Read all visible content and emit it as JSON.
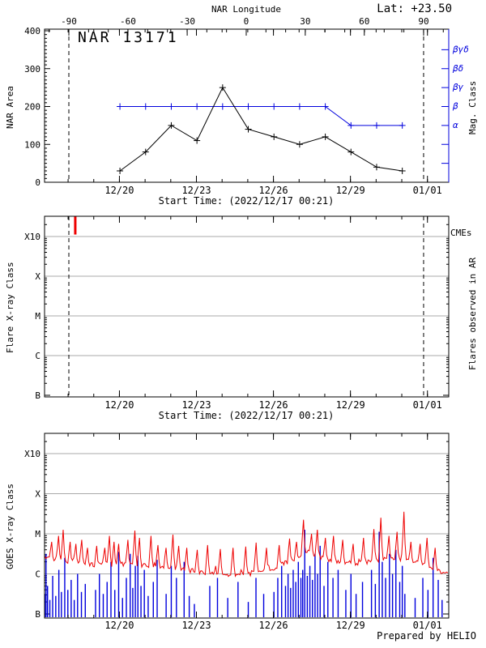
{
  "header": {
    "lat_label": "Lat: +23.50",
    "region_title": "NAR 13171"
  },
  "footer": {
    "prepared_by": "Prepared by HELIO"
  },
  "colors": {
    "blue": "#0000dd",
    "red": "#ee0000",
    "grid_gray": "#aaaaaa",
    "black": "#000000",
    "background": "#ffffff"
  },
  "time_axis": {
    "start_time_label": "Start Time: (2022/12/17 00:21)",
    "tick_labels": [
      "12/20",
      "12/23",
      "12/26",
      "12/29",
      "01/01"
    ],
    "tick_days": [
      2.98,
      5.98,
      8.98,
      11.98,
      14.98
    ],
    "minor_tick_start_day": 0.98,
    "minor_tick_step_days": 1,
    "range_days": [
      0,
      15.81
    ],
    "dashed_line_days": [
      1.01,
      14.83
    ]
  },
  "chart_data": [
    {
      "type": "line",
      "panel": "nar-area",
      "title": "NAR 13171",
      "ylabel": "NAR Area",
      "ylim": [
        0,
        400
      ],
      "yticks": [
        0,
        100,
        200,
        300,
        400
      ],
      "y_minor_step": 10,
      "top_axis": {
        "label": "NAR Longitude",
        "tick_values": [
          -90,
          -60,
          -30,
          0,
          30,
          60,
          90
        ],
        "tick_days": [
          1.01,
          3.31,
          5.62,
          7.92,
          10.22,
          12.52,
          14.83
        ],
        "minor_start_day": 0.243,
        "minor_step_days": 0.7677
      },
      "right_axis": {
        "label": "Mag. Class",
        "class_labels": [
          "βγδ",
          "βδ",
          "βγ",
          "β",
          "α"
        ],
        "class_area_levels": [
          350,
          300,
          250,
          200,
          150
        ],
        "unlabeled_tick_levels": [
          100,
          50
        ]
      },
      "series": [
        {
          "name": "NAR Area",
          "color_key": "black",
          "marker": "plus",
          "x_days": [
            3,
            4,
            5,
            6,
            7,
            8,
            9,
            10,
            11,
            12,
            13,
            14
          ],
          "values": [
            30,
            80,
            150,
            110,
            250,
            140,
            120,
            100,
            120,
            80,
            40,
            30
          ]
        },
        {
          "name": "Mag. Class",
          "color_key": "blue",
          "marker": "plus",
          "x_days": [
            3,
            4,
            5,
            6,
            7,
            8,
            9,
            10,
            11,
            12,
            13,
            14
          ],
          "values": [
            200,
            200,
            200,
            200,
            200,
            200,
            200,
            200,
            200,
            150,
            150,
            150
          ],
          "class_values": [
            "β",
            "β",
            "β",
            "β",
            "β",
            "β",
            "β",
            "β",
            "β",
            "α",
            "α",
            "α"
          ]
        }
      ]
    },
    {
      "type": "events",
      "panel": "flare-xray",
      "ylabel": "Flare X-ray Class",
      "ytick_labels": [
        "B",
        "C",
        "M",
        "X",
        "X10"
      ],
      "ytick_levels": [
        0,
        1,
        2,
        3,
        4
      ],
      "grid_levels": [
        1,
        2,
        3,
        4
      ],
      "ytop_level": 4.5,
      "right_labels": {
        "cme": "CMEs",
        "flares": "Flares observed in AR"
      },
      "cmes": [
        {
          "day": 1.26,
          "level_from": 4.05,
          "level_to": 4.5
        }
      ],
      "flares": [],
      "xlabel": "Start Time: (2022/12/17 00:21)"
    },
    {
      "type": "line+bars",
      "panel": "goes-xray",
      "ylabel": "GOES X-ray Class",
      "ytick_labels": [
        "B",
        "C",
        "M",
        "X",
        "X10"
      ],
      "ytick_levels": [
        0,
        1,
        2,
        3,
        4
      ],
      "grid_levels": [
        1,
        2,
        3,
        4
      ],
      "ytop_level": 4.5,
      "flux_units": "decades above B (B=0, C=1, M=2, X=3, X10=4)",
      "flux_baseline": [
        [
          0,
          1.45
        ],
        [
          0.4,
          1.38
        ],
        [
          0.8,
          1.32
        ],
        [
          1.2,
          1.3
        ],
        [
          1.6,
          1.27
        ],
        [
          2,
          1.22
        ],
        [
          2.4,
          1.25
        ],
        [
          2.8,
          1.22
        ],
        [
          3.2,
          1.24
        ],
        [
          3.6,
          1.22
        ],
        [
          4,
          1.2
        ],
        [
          4.4,
          1.18
        ],
        [
          4.8,
          1.2
        ],
        [
          5.2,
          1.15
        ],
        [
          5.6,
          1.1
        ],
        [
          6,
          1.06
        ],
        [
          6.4,
          1.03
        ],
        [
          6.8,
          1.01
        ],
        [
          7.2,
          0.99
        ],
        [
          7.6,
          0.98
        ],
        [
          8,
          0.99
        ],
        [
          8.4,
          1.04
        ],
        [
          8.8,
          1.1
        ],
        [
          9.2,
          1.2
        ],
        [
          9.6,
          1.32
        ],
        [
          10,
          1.45
        ],
        [
          10.3,
          1.55
        ],
        [
          10.6,
          1.47
        ],
        [
          11,
          1.38
        ],
        [
          11.4,
          1.32
        ],
        [
          11.8,
          1.28
        ],
        [
          12.2,
          1.26
        ],
        [
          12.6,
          1.3
        ],
        [
          13,
          1.34
        ],
        [
          13.4,
          1.38
        ],
        [
          13.8,
          1.36
        ],
        [
          14.2,
          1.32
        ],
        [
          14.6,
          1.28
        ],
        [
          15,
          1.18
        ],
        [
          15.4,
          1.08
        ],
        [
          15.8,
          1.02
        ]
      ],
      "flux_spikes": [
        [
          0.05,
          2.0
        ],
        [
          0.35,
          1.8
        ],
        [
          0.6,
          1.95
        ],
        [
          0.8,
          2.1
        ],
        [
          1.05,
          1.8
        ],
        [
          1.3,
          1.75
        ],
        [
          1.5,
          1.85
        ],
        [
          1.75,
          1.65
        ],
        [
          2.1,
          1.7
        ],
        [
          2.4,
          1.65
        ],
        [
          2.6,
          1.95
        ],
        [
          2.75,
          1.8
        ],
        [
          2.95,
          1.75
        ],
        [
          3.3,
          1.85
        ],
        [
          3.6,
          2.08
        ],
        [
          3.78,
          1.9
        ],
        [
          4.2,
          1.95
        ],
        [
          4.5,
          1.72
        ],
        [
          4.8,
          1.65
        ],
        [
          5.05,
          1.98
        ],
        [
          5.3,
          1.7
        ],
        [
          5.6,
          1.65
        ],
        [
          6,
          1.6
        ],
        [
          6.4,
          1.72
        ],
        [
          6.9,
          1.62
        ],
        [
          7.4,
          1.65
        ],
        [
          7.9,
          1.68
        ],
        [
          8.3,
          1.78
        ],
        [
          8.7,
          1.65
        ],
        [
          9.2,
          1.72
        ],
        [
          9.6,
          1.88
        ],
        [
          9.9,
          1.8
        ],
        [
          10.15,
          2.35
        ],
        [
          10.45,
          2.0
        ],
        [
          10.7,
          2.1
        ],
        [
          11,
          1.9
        ],
        [
          11.3,
          1.95
        ],
        [
          11.7,
          1.85
        ],
        [
          12.1,
          1.75
        ],
        [
          12.5,
          1.9
        ],
        [
          12.9,
          2.12
        ],
        [
          13.15,
          2.4
        ],
        [
          13.5,
          1.95
        ],
        [
          13.8,
          2.05
        ],
        [
          14.05,
          2.55
        ],
        [
          14.35,
          1.8
        ],
        [
          14.7,
          1.75
        ],
        [
          14.95,
          1.9
        ],
        [
          15.3,
          1.65
        ]
      ],
      "flare_bars": [
        [
          0.07,
          0.5
        ],
        [
          0.12,
          1.5
        ],
        [
          0.18,
          0.7
        ],
        [
          0.27,
          0.35
        ],
        [
          0.38,
          0.95
        ],
        [
          0.5,
          0.45
        ],
        [
          0.62,
          1.1
        ],
        [
          0.72,
          0.55
        ],
        [
          0.85,
          1.4
        ],
        [
          0.97,
          0.6
        ],
        [
          1.1,
          0.85
        ],
        [
          1.22,
          0.35
        ],
        [
          1.35,
          1.0
        ],
        [
          1.5,
          0.55
        ],
        [
          1.65,
          0.75
        ],
        [
          2.05,
          0.6
        ],
        [
          2.2,
          1.0
        ],
        [
          2.35,
          0.5
        ],
        [
          2.5,
          0.8
        ],
        [
          2.65,
          1.3
        ],
        [
          2.8,
          0.6
        ],
        [
          2.95,
          1.55
        ],
        [
          3.1,
          0.4
        ],
        [
          3.25,
          0.9
        ],
        [
          3.4,
          1.5
        ],
        [
          3.5,
          0.65
        ],
        [
          3.6,
          1.2
        ],
        [
          3.7,
          1.45
        ],
        [
          3.82,
          0.7
        ],
        [
          3.95,
          1.1
        ],
        [
          4.1,
          0.45
        ],
        [
          4.3,
          0.8
        ],
        [
          4.45,
          1.35
        ],
        [
          4.8,
          0.5
        ],
        [
          5.0,
          1.2
        ],
        [
          5.2,
          0.9
        ],
        [
          5.5,
          1.3
        ],
        [
          5.7,
          0.45
        ],
        [
          5.9,
          0.25
        ],
        [
          6.5,
          0.7
        ],
        [
          6.8,
          0.9
        ],
        [
          7.2,
          0.4
        ],
        [
          7.6,
          0.8
        ],
        [
          8.0,
          0.3
        ],
        [
          8.3,
          0.9
        ],
        [
          8.6,
          0.5
        ],
        [
          9.0,
          0.55
        ],
        [
          9.15,
          0.9
        ],
        [
          9.3,
          1.2
        ],
        [
          9.45,
          0.7
        ],
        [
          9.55,
          1.0
        ],
        [
          9.65,
          0.65
        ],
        [
          9.75,
          1.1
        ],
        [
          9.85,
          0.8
        ],
        [
          9.95,
          1.3
        ],
        [
          10.05,
          0.9
        ],
        [
          10.12,
          1.1
        ],
        [
          10.2,
          2.1
        ],
        [
          10.3,
          0.95
        ],
        [
          10.4,
          1.2
        ],
        [
          10.5,
          0.85
        ],
        [
          10.6,
          1.5
        ],
        [
          10.7,
          1.0
        ],
        [
          10.8,
          1.7
        ],
        [
          10.95,
          0.7
        ],
        [
          11.1,
          1.3
        ],
        [
          11.3,
          0.9
        ],
        [
          11.5,
          1.1
        ],
        [
          11.8,
          0.6
        ],
        [
          12.0,
          1.0
        ],
        [
          12.2,
          0.5
        ],
        [
          12.45,
          0.8
        ],
        [
          12.8,
          1.1
        ],
        [
          12.95,
          0.75
        ],
        [
          13.1,
          2.05
        ],
        [
          13.22,
          1.3
        ],
        [
          13.35,
          0.9
        ],
        [
          13.5,
          1.5
        ],
        [
          13.62,
          1.0
        ],
        [
          13.75,
          1.6
        ],
        [
          13.9,
          0.8
        ],
        [
          14.0,
          1.2
        ],
        [
          14.1,
          0.5
        ],
        [
          14.5,
          0.4
        ],
        [
          14.8,
          0.9
        ],
        [
          15.0,
          0.6
        ],
        [
          15.2,
          1.4
        ],
        [
          15.4,
          0.85
        ],
        [
          15.55,
          0.35
        ]
      ],
      "noise": {
        "seed": 13,
        "amplitude": 0.06,
        "sample_step_days": 0.045
      },
      "footer": "Prepared by HELIO"
    }
  ]
}
